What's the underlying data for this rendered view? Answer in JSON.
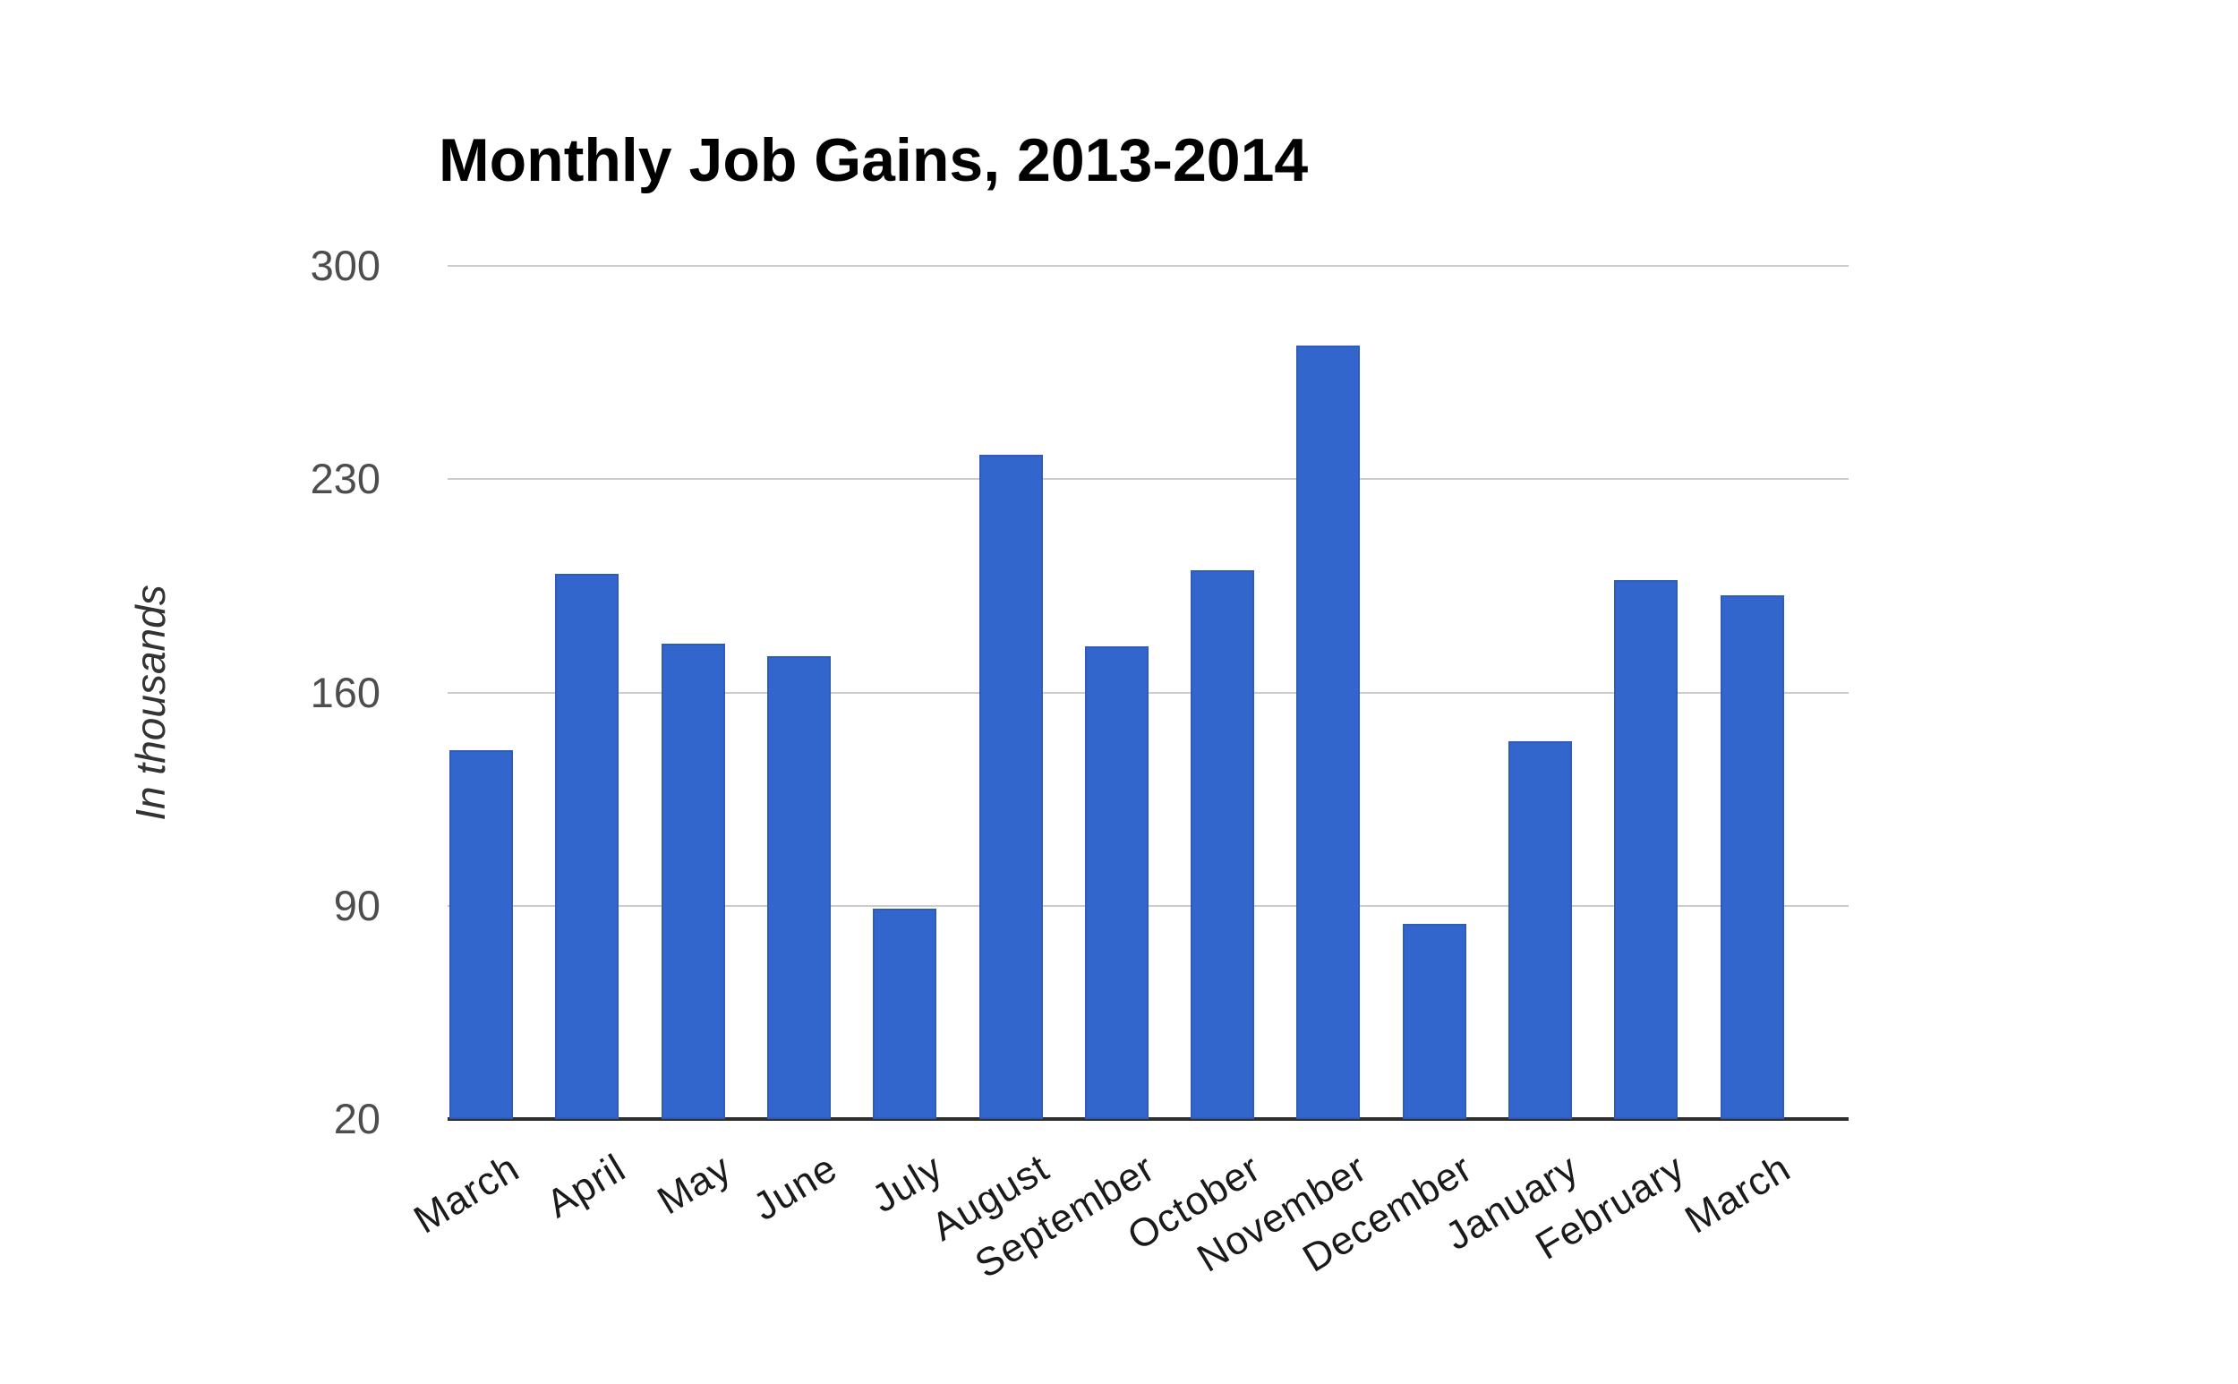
{
  "chart_data": {
    "type": "bar",
    "title": "Monthly Job Gains, 2013-2014",
    "ylabel": "In thousands",
    "xlabel": "",
    "categories": [
      "March",
      "April",
      "May",
      "June",
      "July",
      "August",
      "September",
      "October",
      "November",
      "December",
      "January",
      "February",
      "March"
    ],
    "values": [
      141,
      199,
      176,
      172,
      89,
      238,
      175,
      200,
      274,
      84,
      144,
      197,
      192
    ],
    "yticks": [
      20,
      90,
      160,
      230,
      300
    ],
    "ylim": [
      20,
      300
    ],
    "grid": true,
    "legend": "none",
    "x_label_rotation_deg": -31,
    "colors": {
      "bar_fill": "#3366cc",
      "bar_border": "#2e5cb8",
      "gridline": "#cccccc",
      "axis_line": "#2e2e2e",
      "y_tick_text": "#4d4d4d",
      "x_tick_text": "#1a1a1a",
      "title_text": "#000000",
      "background": "#ffffff"
    }
  }
}
